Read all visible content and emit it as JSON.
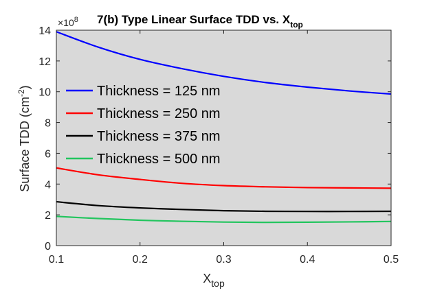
{
  "chart_data": {
    "type": "line",
    "title_main": "7(b) Type Linear Surface TDD vs. X",
    "title_sub": "top",
    "xlabel_main": "X",
    "xlabel_sub": "top",
    "ylabel_main": "Surface TDD (cm",
    "ylabel_sup": "-2",
    "ylabel_end": ")",
    "y_multiplier_base": "×10",
    "y_multiplier_exp": "8",
    "xlim": [
      0.1,
      0.5
    ],
    "ylim": [
      0,
      14
    ],
    "xticks": [
      0.1,
      0.2,
      0.3,
      0.4,
      0.5
    ],
    "xtick_labels": [
      "0.1",
      "0.2",
      "0.3",
      "0.4",
      "0.5"
    ],
    "yticks": [
      0,
      2,
      4,
      6,
      8,
      10,
      12,
      14
    ],
    "ytick_labels": [
      "0",
      "2",
      "4",
      "6",
      "8",
      "10",
      "12",
      "14"
    ],
    "background": "#d9d9d9",
    "grid": false,
    "legend_position": "left",
    "x": [
      0.1,
      0.15,
      0.2,
      0.25,
      0.3,
      0.35,
      0.4,
      0.45,
      0.5
    ],
    "series": [
      {
        "name": "Thickness = 125 nm",
        "color": "#0000ff",
        "values": [
          13.9,
          12.9,
          12.1,
          11.5,
          11.0,
          10.6,
          10.3,
          10.05,
          9.85
        ]
      },
      {
        "name": "Thickness = 250 nm",
        "color": "#ff0000",
        "values": [
          5.05,
          4.6,
          4.3,
          4.05,
          3.9,
          3.82,
          3.77,
          3.75,
          3.73
        ]
      },
      {
        "name": "Thickness = 375 nm",
        "color": "#000000",
        "values": [
          2.85,
          2.6,
          2.45,
          2.35,
          2.27,
          2.23,
          2.22,
          2.22,
          2.23
        ]
      },
      {
        "name": "Thickness = 500 nm",
        "color": "#22c55e",
        "values": [
          1.9,
          1.76,
          1.65,
          1.58,
          1.53,
          1.51,
          1.52,
          1.54,
          1.57
        ]
      }
    ]
  }
}
